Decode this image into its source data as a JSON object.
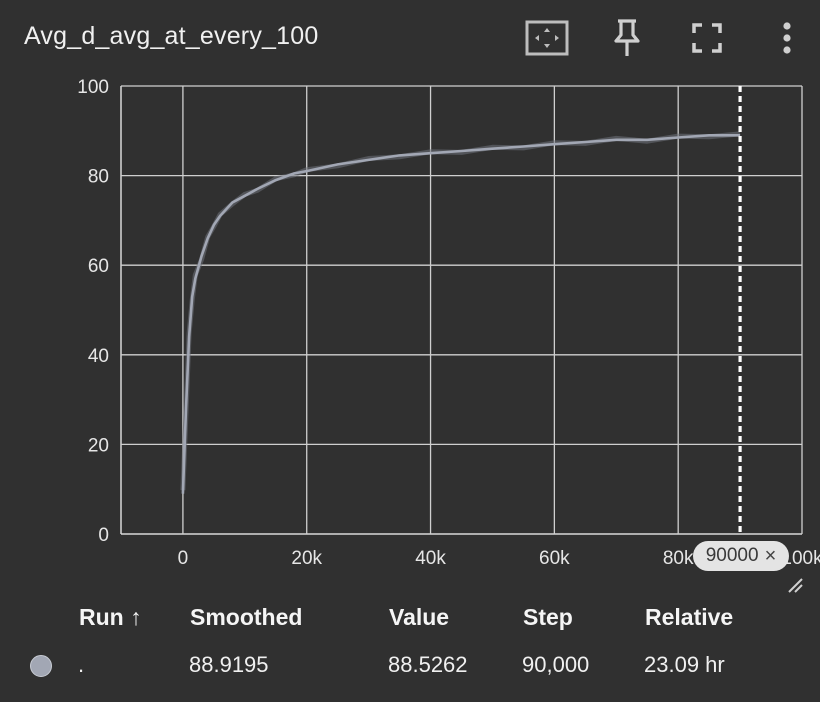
{
  "card": {
    "title": "Avg_d_avg_at_every_100",
    "toolbar": [
      {
        "name": "fit-domain-button",
        "icon": "fit-to-data-icon"
      },
      {
        "name": "pin-button",
        "icon": "pin-icon"
      },
      {
        "name": "fullscreen-button",
        "icon": "fullscreen-icon"
      },
      {
        "name": "more-button",
        "icon": "more-vert-icon"
      }
    ],
    "step_chip": {
      "label": "90000",
      "close": "×"
    }
  },
  "chart_data": {
    "type": "line",
    "title": "Avg_d_avg_at_every_100",
    "xlabel": "",
    "ylabel": "",
    "xlim": [
      -10000,
      100000
    ],
    "ylim": [
      0,
      100
    ],
    "xticks": [
      0,
      20000,
      40000,
      60000,
      80000,
      100000
    ],
    "xtick_labels": [
      "0",
      "20k",
      "40k",
      "60k",
      "80k",
      "100k"
    ],
    "yticks": [
      0,
      20,
      40,
      60,
      80,
      100
    ],
    "ytick_labels": [
      "0",
      "20",
      "40",
      "60",
      "80",
      "100"
    ],
    "grid": true,
    "cursor_step": 90000,
    "series": [
      {
        "name": ".",
        "color": "#a2a7b4",
        "x": [
          0,
          500,
          1000,
          1500,
          2000,
          3000,
          4000,
          5000,
          6000,
          8000,
          10000,
          12000,
          15000,
          18000,
          20000,
          25000,
          30000,
          35000,
          40000,
          45000,
          50000,
          55000,
          60000,
          65000,
          70000,
          75000,
          80000,
          85000,
          90000
        ],
        "y": [
          9,
          28,
          44,
          53,
          57,
          62,
          66,
          69,
          71,
          74,
          75.5,
          77,
          79,
          80.5,
          81,
          82.5,
          83.5,
          84.5,
          85,
          85.5,
          86,
          86.5,
          87,
          87.5,
          88,
          88,
          88.5,
          89,
          89
        ]
      }
    ]
  },
  "table": {
    "headers": {
      "run": "Run ↑",
      "smoothed": "Smoothed",
      "value": "Value",
      "step": "Step",
      "relative": "Relative"
    },
    "rows": [
      {
        "run": ".",
        "smoothed": "88.9195",
        "value": "88.5262",
        "step": "90,000",
        "relative": "23.09 hr",
        "color": "#a2a7b4"
      }
    ]
  }
}
